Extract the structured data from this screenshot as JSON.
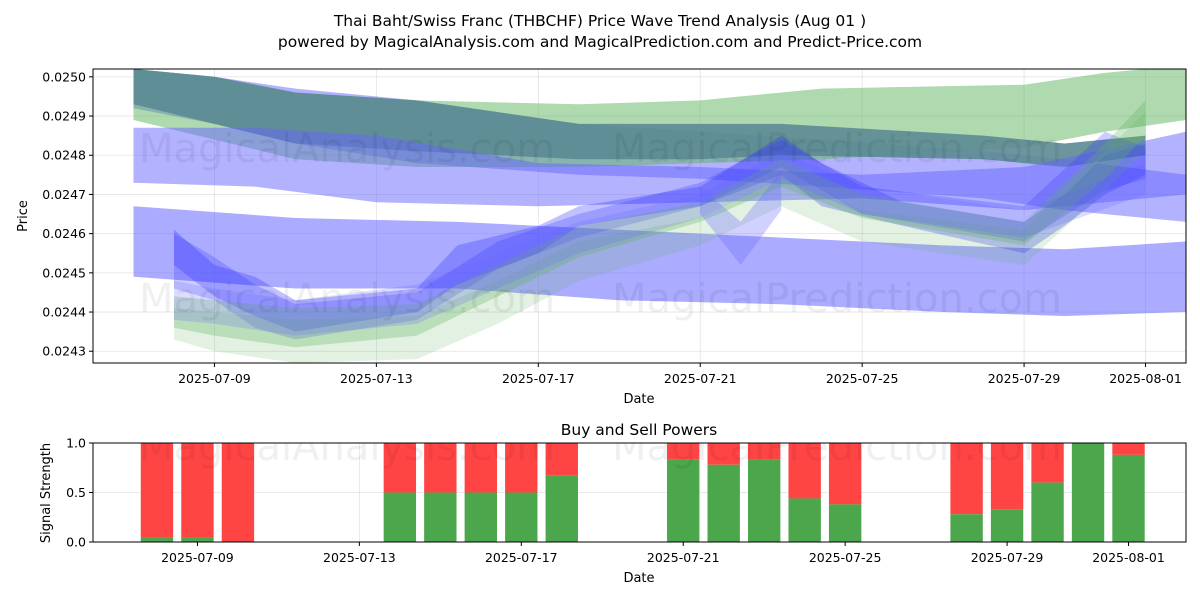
{
  "chart_data": [
    {
      "type": "area",
      "title": "Thai Baht/Swiss Franc (THBCHF) Price Wave Trend Analysis (Aug 01 )",
      "subtitle": "powered by MagicalAnalysis.com and MagicalPrediction.com and Predict-Price.com",
      "xlabel": "Date",
      "ylabel": "Price",
      "xlim": [
        "2025-07-06",
        "2025-08-02"
      ],
      "ylim": [
        0.02427,
        0.02502
      ],
      "x_ticks": [
        "2025-07-09",
        "2025-07-13",
        "2025-07-17",
        "2025-07-21",
        "2025-07-25",
        "2025-07-29",
        "2025-08-01"
      ],
      "y_ticks": [
        "0.0243",
        "0.0244",
        "0.0245",
        "0.0246",
        "0.0247",
        "0.0248",
        "0.0249",
        "0.0250"
      ],
      "grid": true,
      "watermarks": [
        "MagicalAnalysis.com",
        "MagicalPrediction.com"
      ],
      "series": [
        {
          "color": "#6666ff",
          "opacity": 0.5,
          "x": [
            "2025-07-07",
            "2025-07-09",
            "2025-07-11",
            "2025-07-14",
            "2025-07-18",
            "2025-07-21",
            "2025-07-24",
            "2025-07-28",
            "2025-07-30",
            "2025-08-02"
          ],
          "upper": [
            0.02502,
            0.025,
            0.02497,
            0.02494,
            0.02488,
            0.02486,
            0.02484,
            0.02481,
            0.02479,
            0.02475
          ],
          "lower": [
            0.02492,
            0.02488,
            0.02483,
            0.02478,
            0.02475,
            0.02474,
            0.02472,
            0.02469,
            0.02466,
            0.02463
          ]
        },
        {
          "color": "#5fb35f",
          "opacity": 0.5,
          "x": [
            "2025-07-07",
            "2025-07-09",
            "2025-07-11",
            "2025-07-14",
            "2025-07-18",
            "2025-07-21",
            "2025-07-24",
            "2025-07-29",
            "2025-07-31",
            "2025-08-02"
          ],
          "upper": [
            0.02502,
            0.025,
            0.02496,
            0.02494,
            0.02493,
            0.02494,
            0.02497,
            0.02498,
            0.02501,
            0.02503
          ],
          "lower": [
            0.02489,
            0.02484,
            0.02479,
            0.02477,
            0.02477,
            0.02478,
            0.02479,
            0.02482,
            0.02486,
            0.02489
          ]
        },
        {
          "color": "#5c8a94",
          "opacity": 0.9,
          "x": [
            "2025-07-07",
            "2025-07-09",
            "2025-07-11",
            "2025-07-14",
            "2025-07-18",
            "2025-07-21",
            "2025-07-23",
            "2025-07-28",
            "2025-07-30",
            "2025-08-01"
          ],
          "upper": [
            0.02502,
            0.025,
            0.02496,
            0.02494,
            0.02488,
            0.02488,
            0.02488,
            0.02485,
            0.02483,
            0.02485
          ],
          "lower": [
            0.02493,
            0.02488,
            0.02483,
            0.02481,
            0.02479,
            0.02479,
            0.0248,
            0.02479,
            0.02477,
            0.0248
          ]
        },
        {
          "color": "#6666ff",
          "opacity": 0.55,
          "x": [
            "2025-07-07",
            "2025-07-11",
            "2025-07-15",
            "2025-07-19",
            "2025-07-23",
            "2025-07-27",
            "2025-07-30",
            "2025-08-02"
          ],
          "upper": [
            0.02467,
            0.02464,
            0.02463,
            0.02461,
            0.02459,
            0.02457,
            0.02456,
            0.02458
          ],
          "lower": [
            0.02449,
            0.02446,
            0.02446,
            0.02443,
            0.02442,
            0.0244,
            0.02439,
            0.0244
          ]
        },
        {
          "color": "#6666ff",
          "opacity": 0.5,
          "x": [
            "2025-07-07",
            "2025-07-10",
            "2025-07-13",
            "2025-07-17",
            "2025-07-21",
            "2025-07-25",
            "2025-07-29",
            "2025-08-02"
          ],
          "upper": [
            0.02487,
            0.02487,
            0.02485,
            0.02478,
            0.02477,
            0.02475,
            0.02477,
            0.02486
          ],
          "lower": [
            0.02473,
            0.02472,
            0.02468,
            0.02467,
            0.02468,
            0.02469,
            0.02466,
            0.0247
          ]
        },
        {
          "color": "#3333ff",
          "opacity": 0.3,
          "x": [
            "2025-07-08",
            "2025-07-09",
            "2025-07-10",
            "2025-07-11",
            "2025-07-14",
            "2025-07-15",
            "2025-07-17",
            "2025-07-18",
            "2025-07-21",
            "2025-07-23",
            "2025-07-24",
            "2025-07-26",
            "2025-07-29",
            "2025-07-30",
            "2025-07-31",
            "2025-08-01"
          ],
          "upper": [
            0.02461,
            0.02452,
            0.02449,
            0.02443,
            0.02446,
            0.02457,
            0.02462,
            0.02467,
            0.02472,
            0.02485,
            0.02478,
            0.02468,
            0.02463,
            0.0247,
            0.0248,
            0.02483
          ],
          "lower": [
            0.02452,
            0.02444,
            0.02439,
            0.02435,
            0.0244,
            0.02447,
            0.02455,
            0.02462,
            0.02467,
            0.02475,
            0.02467,
            0.02462,
            0.02455,
            0.02462,
            0.0247,
            0.02475
          ]
        },
        {
          "color": "#3333ff",
          "opacity": 0.25,
          "x": [
            "2025-07-08",
            "2025-07-09",
            "2025-07-10",
            "2025-07-11",
            "2025-07-14",
            "2025-07-16",
            "2025-07-18",
            "2025-07-21",
            "2025-07-23",
            "2025-07-25",
            "2025-07-29",
            "2025-07-31",
            "2025-08-01"
          ],
          "upper": [
            0.0246,
            0.02454,
            0.02447,
            0.02442,
            0.02445,
            0.02458,
            0.02465,
            0.02473,
            0.02484,
            0.02472,
            0.02467,
            0.02486,
            0.02482
          ],
          "lower": [
            0.02446,
            0.02443,
            0.02436,
            0.02433,
            0.02438,
            0.02451,
            0.02459,
            0.02467,
            0.02477,
            0.02465,
            0.02458,
            0.02471,
            0.02474
          ]
        },
        {
          "color": "#5fb35f",
          "opacity": 0.3,
          "x": [
            "2025-07-08",
            "2025-07-09",
            "2025-07-11",
            "2025-07-14",
            "2025-07-16",
            "2025-07-18",
            "2025-07-21",
            "2025-07-23",
            "2025-07-25",
            "2025-07-29",
            "2025-07-31",
            "2025-08-01"
          ],
          "upper": [
            0.02444,
            0.02443,
            0.02441,
            0.02442,
            0.02452,
            0.02462,
            0.02468,
            0.02479,
            0.0247,
            0.02463,
            0.02483,
            0.02494
          ],
          "lower": [
            0.02436,
            0.02434,
            0.02431,
            0.02434,
            0.02444,
            0.02454,
            0.02463,
            0.02472,
            0.02464,
            0.02457,
            0.02474,
            0.02485
          ]
        },
        {
          "color": "#5fb35f",
          "opacity": 0.18,
          "x": [
            "2025-07-08",
            "2025-07-09",
            "2025-07-11",
            "2025-07-14",
            "2025-07-16",
            "2025-07-18",
            "2025-07-21",
            "2025-07-23",
            "2025-07-25",
            "2025-07-29",
            "2025-07-31",
            "2025-08-01"
          ],
          "upper": [
            0.02441,
            0.0244,
            0.02438,
            0.02439,
            0.02448,
            0.02458,
            0.02464,
            0.02474,
            0.02466,
            0.02461,
            0.02481,
            0.02491
          ],
          "lower": [
            0.02433,
            0.0243,
            0.02427,
            0.02428,
            0.02437,
            0.02448,
            0.02457,
            0.02467,
            0.02458,
            0.02452,
            0.02471,
            0.02481
          ]
        },
        {
          "color": "#6666ff",
          "opacity": 0.22,
          "x": [
            "2025-07-08",
            "2025-07-09",
            "2025-07-11",
            "2025-07-14",
            "2025-07-16",
            "2025-07-18",
            "2025-07-21",
            "2025-07-23",
            "2025-07-25",
            "2025-07-29",
            "2025-08-01"
          ],
          "upper": [
            0.02448,
            0.02446,
            0.02443,
            0.02447,
            0.02455,
            0.02463,
            0.0247,
            0.02481,
            0.02472,
            0.02466,
            0.02478
          ],
          "lower": [
            0.02438,
            0.02437,
            0.02434,
            0.02437,
            0.02446,
            0.02455,
            0.02464,
            0.02474,
            0.02465,
            0.02459,
            0.0247
          ]
        },
        {
          "color": "#6666ff",
          "opacity": 0.3,
          "x": [
            "2025-07-21",
            "2025-07-22",
            "2025-07-23"
          ],
          "upper": [
            0.02472,
            0.02463,
            0.02476
          ],
          "lower": [
            0.02465,
            0.02452,
            0.02466
          ]
        }
      ]
    },
    {
      "type": "bar",
      "title": "Buy and Sell Powers",
      "xlabel": "Date",
      "ylabel": "Signal Strength",
      "ylim": [
        0,
        1
      ],
      "y_ticks": [
        "0.0",
        "0.5",
        "1.0"
      ],
      "x_ticks": [
        "2025-07-09",
        "2025-07-13",
        "2025-07-17",
        "2025-07-21",
        "2025-07-25",
        "2025-07-29",
        "2025-08-01"
      ],
      "colors": {
        "buy": "#4ca64c",
        "sell": "#ff4444"
      },
      "dates": [
        "2025-07-08",
        "2025-07-09",
        "2025-07-10",
        "2025-07-14",
        "2025-07-15",
        "2025-07-16",
        "2025-07-17",
        "2025-07-18",
        "2025-07-21",
        "2025-07-22",
        "2025-07-23",
        "2025-07-24",
        "2025-07-25",
        "2025-07-28",
        "2025-07-29",
        "2025-07-30",
        "2025-07-31",
        "2025-08-01"
      ],
      "buy": [
        0.05,
        0.05,
        0.0,
        0.5,
        0.5,
        0.5,
        0.5,
        0.67,
        0.83,
        0.78,
        0.83,
        0.44,
        0.38,
        0.28,
        0.33,
        0.6,
        1.0,
        0.88
      ],
      "watermarks": [
        "MagicalAnalysis.com",
        "MagicalPrediction.com"
      ]
    }
  ]
}
